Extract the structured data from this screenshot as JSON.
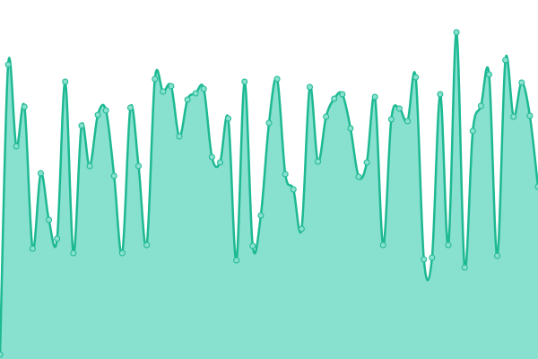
{
  "chart_data": {
    "type": "area",
    "color": "#1db992",
    "fill": "#88e0cf",
    "values": [
      5,
      328,
      237,
      281,
      123,
      207,
      155,
      134,
      309,
      118,
      260,
      215,
      272,
      277,
      204,
      118,
      280,
      215,
      127,
      312,
      298,
      304,
      248,
      289,
      296,
      301,
      225,
      219,
      268,
      110,
      309,
      126,
      160,
      263,
      312,
      206,
      189,
      145,
      303,
      220,
      270,
      290,
      295,
      257,
      203,
      219,
      292,
      127,
      267,
      279,
      265,
      314,
      111,
      113,
      295,
      127,
      364,
      102,
      254,
      282,
      317,
      115,
      333,
      270,
      308,
      271,
      192
    ],
    "ylim": [
      0,
      400
    ]
  }
}
